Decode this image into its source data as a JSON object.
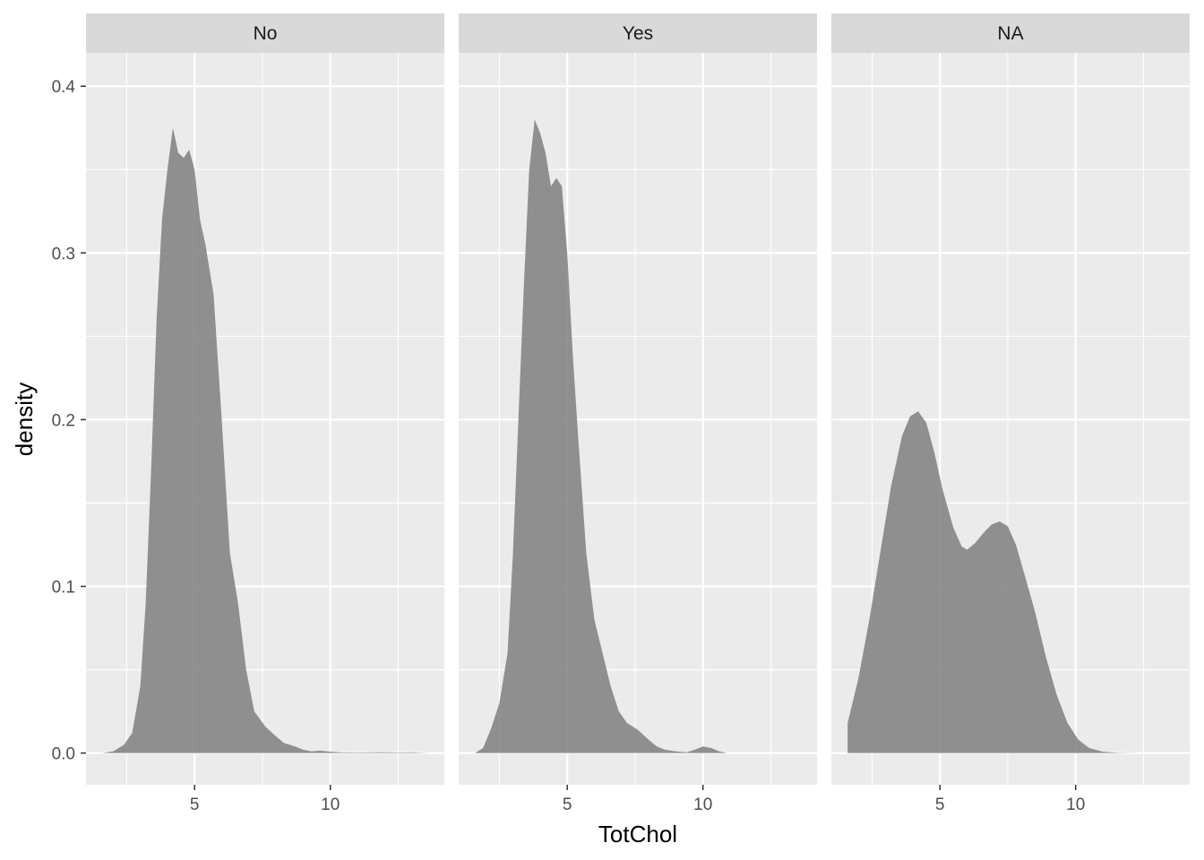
{
  "chart_data": {
    "type": "area",
    "facet_var_labels": [
      "No",
      "Yes",
      "NA"
    ],
    "xlabel": "TotChol",
    "ylabel": "density",
    "xlim": [
      1,
      14.2
    ],
    "ylim": [
      -0.019,
      0.42
    ],
    "x_breaks": [
      5,
      10
    ],
    "x_minor_breaks": [
      2.5,
      7.5,
      12.5
    ],
    "y_breaks": [
      0.0,
      0.1,
      0.2,
      0.3,
      0.4
    ],
    "y_minor_breaks": [
      0.05,
      0.15,
      0.25,
      0.35
    ],
    "x_tick_labels": [
      "5",
      "10"
    ],
    "y_tick_labels": [
      "0.0",
      "0.1",
      "0.2",
      "0.3",
      "0.4"
    ],
    "fill_color": "#7f7f7f",
    "fill_opacity": 0.85,
    "panel_background": "#ebebeb",
    "strip_background": "#d9d9d9",
    "grid": true,
    "panels": [
      {
        "label": "No",
        "x": [
          1.6,
          2.0,
          2.4,
          2.7,
          3.0,
          3.2,
          3.4,
          3.6,
          3.8,
          4.0,
          4.2,
          4.4,
          4.6,
          4.8,
          5.0,
          5.2,
          5.4,
          5.7,
          6.0,
          6.3,
          6.6,
          6.9,
          7.2,
          7.6,
          8.0,
          8.3,
          8.7,
          9.0,
          9.3,
          9.6,
          10.0,
          10.4,
          11.0,
          12.0,
          12.5,
          13.0,
          13.6
        ],
        "y": [
          0.0,
          0.001,
          0.005,
          0.012,
          0.04,
          0.09,
          0.17,
          0.26,
          0.32,
          0.35,
          0.375,
          0.36,
          0.357,
          0.362,
          0.35,
          0.32,
          0.305,
          0.275,
          0.2,
          0.12,
          0.09,
          0.05,
          0.025,
          0.016,
          0.01,
          0.006,
          0.004,
          0.002,
          0.001,
          0.0015,
          0.0008,
          0.0004,
          0.0003,
          0.0005,
          0.0003,
          0.0004,
          0.0
        ]
      },
      {
        "label": "Yes",
        "x": [
          1.6,
          1.9,
          2.2,
          2.5,
          2.8,
          3.0,
          3.2,
          3.4,
          3.6,
          3.8,
          4.0,
          4.2,
          4.4,
          4.6,
          4.8,
          5.0,
          5.2,
          5.4,
          5.7,
          6.0,
          6.3,
          6.6,
          6.9,
          7.2,
          7.6,
          8.0,
          8.3,
          8.6,
          9.0,
          9.4,
          9.7,
          10.0,
          10.3,
          10.6,
          10.9
        ],
        "y": [
          0.0,
          0.003,
          0.015,
          0.03,
          0.06,
          0.12,
          0.2,
          0.28,
          0.35,
          0.38,
          0.372,
          0.36,
          0.34,
          0.345,
          0.34,
          0.3,
          0.24,
          0.19,
          0.12,
          0.08,
          0.06,
          0.04,
          0.025,
          0.018,
          0.014,
          0.008,
          0.004,
          0.002,
          0.001,
          0.0005,
          0.002,
          0.004,
          0.003,
          0.001,
          0.0
        ]
      },
      {
        "label": "NA",
        "x": [
          1.6,
          2.0,
          2.4,
          2.8,
          3.2,
          3.6,
          3.9,
          4.2,
          4.5,
          4.8,
          5.1,
          5.5,
          5.8,
          6.0,
          6.3,
          6.6,
          6.9,
          7.2,
          7.5,
          7.8,
          8.1,
          8.5,
          8.9,
          9.3,
          9.7,
          10.1,
          10.5,
          11.0,
          11.5,
          12.0,
          12.4
        ],
        "y": [
          0.018,
          0.045,
          0.08,
          0.12,
          0.16,
          0.19,
          0.202,
          0.205,
          0.198,
          0.18,
          0.158,
          0.135,
          0.124,
          0.122,
          0.126,
          0.132,
          0.137,
          0.139,
          0.136,
          0.125,
          0.108,
          0.085,
          0.058,
          0.035,
          0.018,
          0.008,
          0.003,
          0.0008,
          0.0002,
          0.0001,
          0.0
        ]
      }
    ]
  }
}
